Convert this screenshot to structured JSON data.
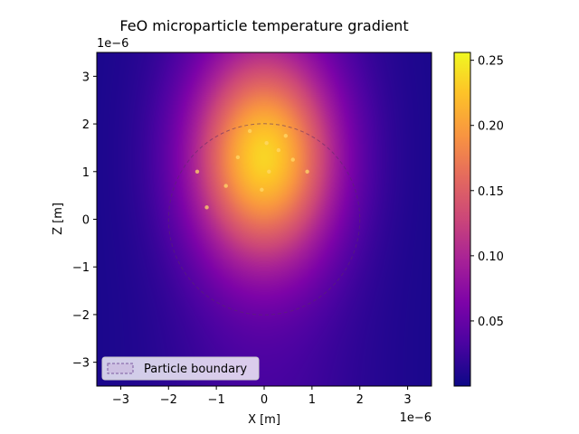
{
  "chart_data": {
    "type": "heatmap",
    "title": "FeO microparticle temperature gradient",
    "xlabel": "X [m]",
    "ylabel": "Z [m]",
    "x_offset_label": "1e−6",
    "y_offset_label": "1e−6",
    "xlim": [
      -3.5,
      3.5
    ],
    "ylim": [
      -3.5,
      3.5
    ],
    "x_ticks": [
      -3,
      -2,
      -1,
      0,
      1,
      2,
      3
    ],
    "y_ticks": [
      -3,
      -2,
      -1,
      0,
      1,
      2,
      3
    ],
    "x_tick_labels": [
      "−3",
      "−2",
      "−1",
      "0",
      "1",
      "2",
      "3"
    ],
    "y_tick_labels": [
      "−3",
      "−2",
      "−1",
      "0",
      "1",
      "2",
      "3"
    ],
    "colormap": "plasma",
    "colorbar": {
      "min": 0.0,
      "max": 0.256,
      "ticks": [
        0.05,
        0.1,
        0.15,
        0.2,
        0.25
      ],
      "tick_labels": [
        "0.05",
        "0.10",
        "0.15",
        "0.20",
        "0.25"
      ]
    },
    "hotspot": {
      "center_x": 0.0,
      "center_z": 1.3,
      "peak": 0.21
    },
    "sparkles_xz": [
      [
        0.05,
        1.6
      ],
      [
        -0.3,
        1.85
      ],
      [
        0.6,
        1.25
      ],
      [
        0.9,
        1.0
      ],
      [
        -0.05,
        0.62
      ],
      [
        -1.4,
        1.0
      ],
      [
        -1.2,
        0.25
      ],
      [
        0.3,
        1.45
      ],
      [
        0.1,
        1.0
      ],
      [
        -0.8,
        0.7
      ],
      [
        0.45,
        1.75
      ],
      [
        -0.55,
        1.3
      ]
    ],
    "particle_boundary": {
      "center_x": 0.0,
      "center_z": 0.0,
      "radius": 2.0
    },
    "legend": {
      "placement": "lower-left",
      "entries": [
        "Particle boundary"
      ]
    },
    "grid": false
  }
}
